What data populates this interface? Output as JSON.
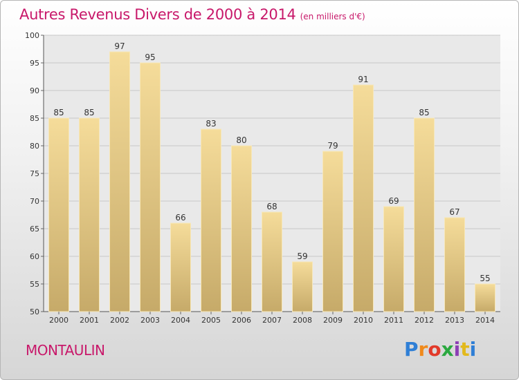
{
  "chart_title": "Autres Revenus Divers de 2000 à 2014",
  "chart_subtitle": "(en milliers d'€)",
  "commune": "MONTAULIN",
  "logo": {
    "letters": [
      "P",
      "r",
      "o",
      "x",
      "i",
      "t",
      "i"
    ],
    "colors": [
      "#2f7fd6",
      "#f08a1c",
      "#e23a2a",
      "#2aa83f",
      "#8c3fb5",
      "#e2b91c",
      "#2f7fd6"
    ]
  },
  "colors": {
    "bar_top": "#f5dc9a",
    "bar_bottom": "#c6aa69",
    "grid": "#c7c7c7",
    "plot_bg": "#e9e9e9",
    "title": "#c8186a"
  },
  "chart_data": {
    "type": "bar",
    "categories": [
      "2000",
      "2001",
      "2002",
      "2003",
      "2004",
      "2005",
      "2006",
      "2007",
      "2008",
      "2009",
      "2010",
      "2011",
      "2012",
      "2013",
      "2014"
    ],
    "values": [
      85,
      85,
      97,
      95,
      66,
      83,
      80,
      68,
      59,
      79,
      91,
      69,
      85,
      67,
      55
    ],
    "title": "Autres Revenus Divers de 2000 à 2014",
    "subtitle": "(en milliers d'€)",
    "ylim": [
      50,
      100
    ],
    "yticks": [
      50,
      55,
      60,
      65,
      70,
      75,
      80,
      85,
      90,
      95,
      100
    ],
    "grid": true,
    "legend": "none"
  }
}
